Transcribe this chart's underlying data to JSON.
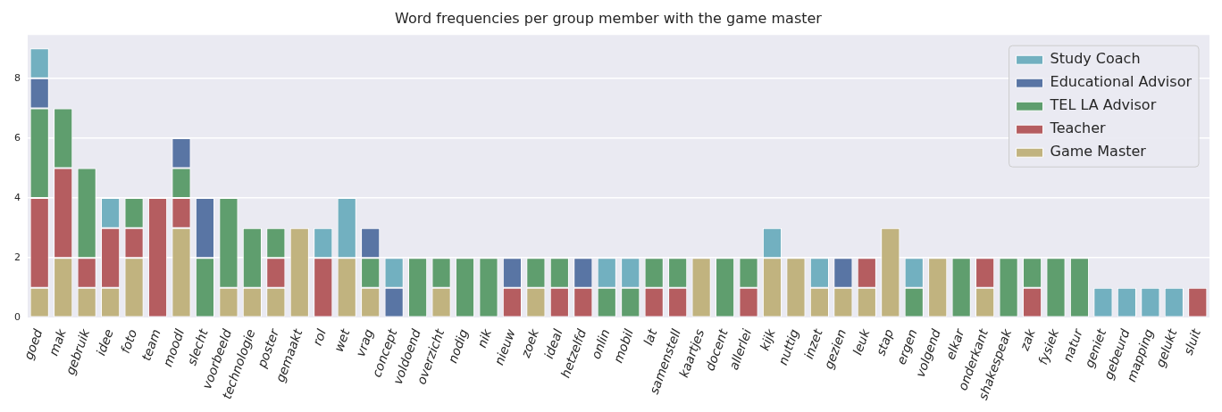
{
  "chart_data": {
    "type": "bar",
    "title": "Word frequencies per group member with the game master",
    "stacked": true,
    "grid": "y",
    "legend": "top right",
    "categories": [
      "goed",
      "mak",
      "gebruik",
      "idee",
      "foto",
      "team",
      "moodl",
      "slecht",
      "voorbeeld",
      "technologie",
      "poster",
      "gemaakt",
      "rol",
      "wet",
      "vrag",
      "concept",
      "voldoend",
      "overzicht",
      "nodig",
      "nik",
      "nieuw",
      "zoek",
      "ideal",
      "hetzelfd",
      "onlin",
      "mobil",
      "lat",
      "samenstell",
      "kaartjes",
      "docent",
      "allerlei",
      "kijk",
      "nuttig",
      "inzet",
      "gezien",
      "leuk",
      "stap",
      "ergen",
      "volgend",
      "elkar",
      "onderkant",
      "shakespeak",
      "zak",
      "fysiek",
      "natur",
      "geniet",
      "gebeurd",
      "mapping",
      "gelukt",
      "sluit"
    ],
    "ylim": [
      0,
      9.45
    ],
    "yticks": [
      0,
      2,
      4,
      6,
      8
    ],
    "series": [
      {
        "name": "Game Master",
        "color": "#c1b37f",
        "values": [
          1,
          2,
          1,
          1,
          2,
          0,
          3,
          0,
          1,
          1,
          1,
          3,
          0,
          2,
          1,
          0,
          0,
          1,
          0,
          0,
          0,
          1,
          0,
          0,
          0,
          0,
          0,
          0,
          2,
          0,
          0,
          2,
          2,
          1,
          1,
          1,
          3,
          0,
          2,
          0,
          1,
          0,
          0,
          0,
          0,
          0,
          0,
          0,
          0,
          0
        ]
      },
      {
        "name": "Teacher",
        "color": "#b55d60",
        "values": [
          3,
          3,
          1,
          2,
          1,
          4,
          1,
          0,
          0,
          0,
          1,
          0,
          2,
          0,
          0,
          0,
          0,
          0,
          0,
          0,
          1,
          0,
          1,
          1,
          0,
          0,
          1,
          1,
          0,
          0,
          1,
          0,
          0,
          0,
          0,
          1,
          0,
          0,
          0,
          0,
          1,
          0,
          1,
          0,
          0,
          0,
          0,
          0,
          0,
          1
        ]
      },
      {
        "name": "TEL LA Advisor",
        "color": "#5f9e6e",
        "values": [
          3,
          2,
          3,
          0,
          1,
          0,
          1,
          2,
          3,
          2,
          1,
          0,
          0,
          0,
          1,
          0,
          2,
          1,
          2,
          2,
          0,
          1,
          1,
          0,
          1,
          1,
          1,
          1,
          0,
          2,
          1,
          0,
          0,
          0,
          0,
          0,
          0,
          1,
          0,
          2,
          0,
          2,
          1,
          2,
          2,
          0,
          0,
          0,
          0,
          0
        ]
      },
      {
        "name": "Educational Advisor",
        "color": "#5975a4",
        "values": [
          1,
          0,
          0,
          0,
          0,
          0,
          1,
          2,
          0,
          0,
          0,
          0,
          0,
          0,
          1,
          1,
          0,
          0,
          0,
          0,
          1,
          0,
          0,
          1,
          0,
          0,
          0,
          0,
          0,
          0,
          0,
          0,
          0,
          0,
          1,
          0,
          0,
          0,
          0,
          0,
          0,
          0,
          0,
          0,
          0,
          0,
          0,
          0,
          0,
          0
        ]
      },
      {
        "name": "Study Coach",
        "color": "#72b0c0",
        "values": [
          1,
          0,
          0,
          1,
          0,
          0,
          0,
          0,
          0,
          0,
          0,
          0,
          1,
          2,
          0,
          1,
          0,
          0,
          0,
          0,
          0,
          0,
          0,
          0,
          1,
          1,
          0,
          0,
          0,
          0,
          0,
          1,
          0,
          1,
          0,
          0,
          0,
          1,
          0,
          0,
          0,
          0,
          0,
          0,
          0,
          1,
          1,
          1,
          1,
          0
        ]
      }
    ]
  }
}
